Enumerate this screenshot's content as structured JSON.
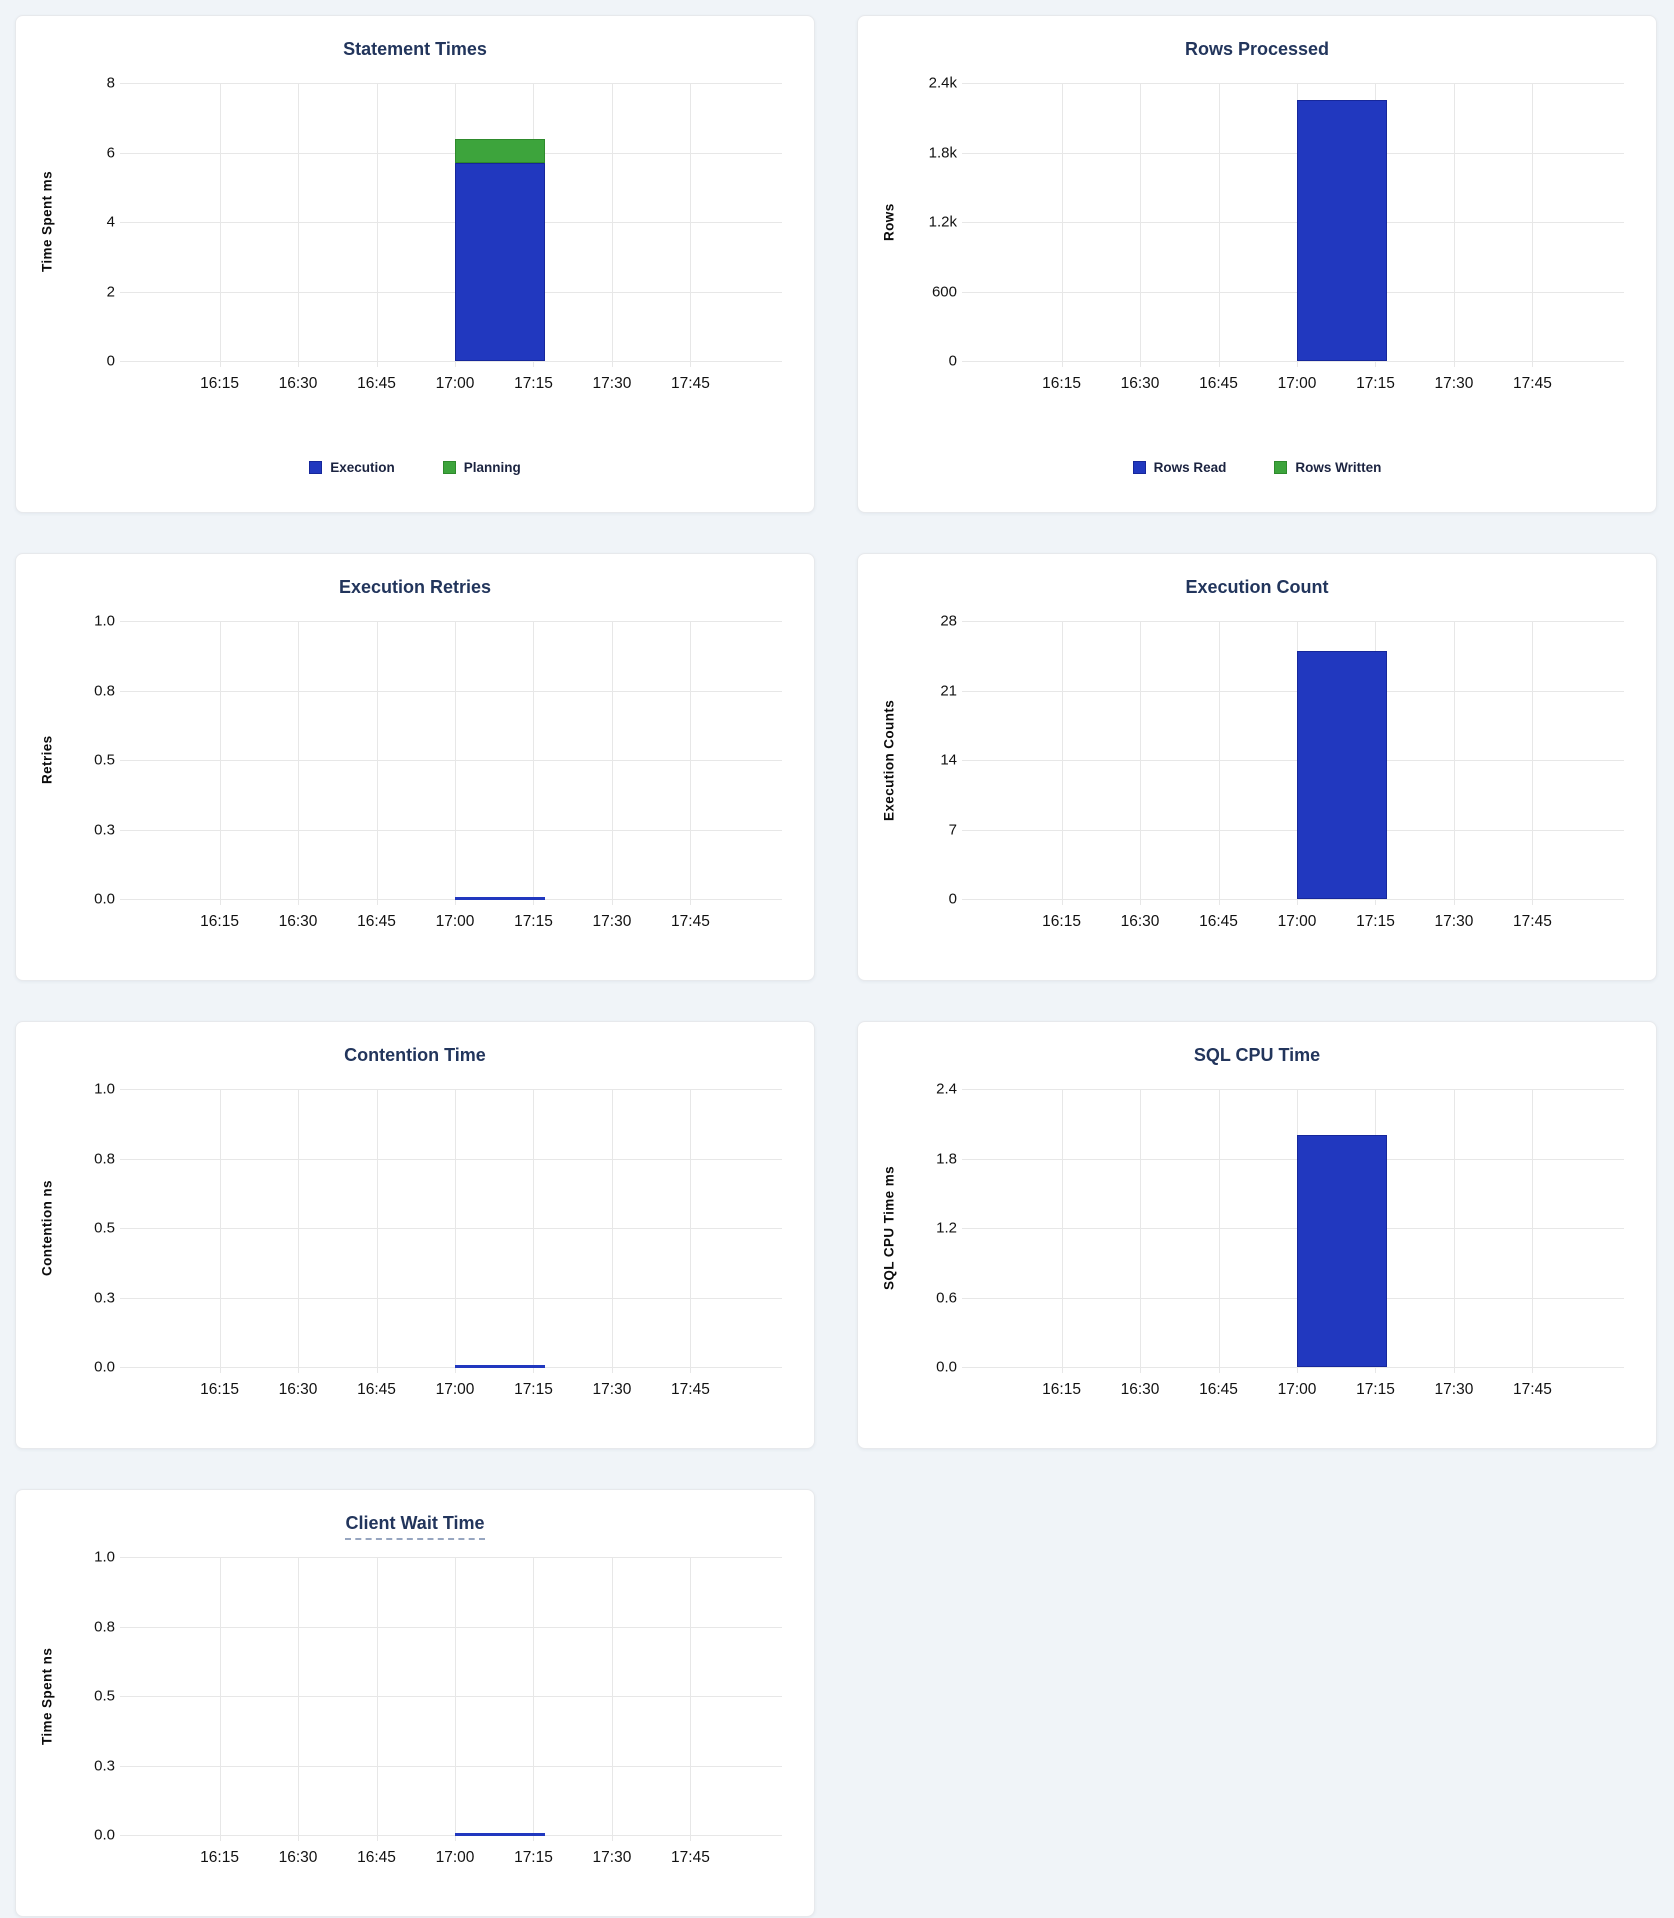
{
  "colors": {
    "blue": "#2138bf",
    "blue_border": "#16279b",
    "green": "#3da43c",
    "green_border": "#2e8a2c",
    "title_text": "#22355c",
    "grid_line": "#e7e7e7",
    "tick_text": "#121212",
    "legend_text": "#1b2340",
    "page_bg": "#f0f4f8",
    "card_bg": "#ffffff"
  },
  "x_axis": {
    "tick_labels": [
      "16:15",
      "16:30",
      "16:45",
      "17:00",
      "17:15",
      "17:30",
      "17:45"
    ],
    "range": [
      "16:00",
      "18:00"
    ]
  },
  "bar_window": {
    "x_from": "17:00",
    "x_to": "17:17",
    "from_pct": 50,
    "to_pct": 63.8
  },
  "chart_data": [
    {
      "type": "bar",
      "title": "Statement Times",
      "ylabel": "Time Spent ms",
      "xlabel": "",
      "ylim": [
        0,
        8
      ],
      "y_tick_labels": [
        "8",
        "6",
        "4",
        "2",
        "0"
      ],
      "x_tick_labels": [
        "16:15",
        "16:30",
        "16:45",
        "17:00",
        "17:15",
        "17:30",
        "17:45"
      ],
      "grid": true,
      "stacked": true,
      "series": [
        {
          "name": "Execution",
          "color": "blue",
          "x": "17:00-17:17",
          "value": 5.7
        },
        {
          "name": "Planning",
          "color": "green",
          "x": "17:00-17:17",
          "value": 0.7
        }
      ],
      "legend": [
        {
          "label": "Execution",
          "color": "blue"
        },
        {
          "label": "Planning",
          "color": "green"
        }
      ],
      "legend_position": "bottom"
    },
    {
      "type": "bar",
      "title": "Rows Processed",
      "ylabel": "Rows",
      "xlabel": "",
      "ylim": [
        0,
        2400
      ],
      "y_tick_labels": [
        "2.4k",
        "1.8k",
        "1.2k",
        "600",
        "0"
      ],
      "x_tick_labels": [
        "16:15",
        "16:30",
        "16:45",
        "17:00",
        "17:15",
        "17:30",
        "17:45"
      ],
      "grid": true,
      "stacked": true,
      "series": [
        {
          "name": "Rows Read",
          "color": "blue",
          "x": "17:00-17:17",
          "value": 2250
        },
        {
          "name": "Rows Written",
          "color": "green",
          "x": "17:00-17:17",
          "value": 0
        }
      ],
      "legend": [
        {
          "label": "Rows Read",
          "color": "blue"
        },
        {
          "label": "Rows Written",
          "color": "green"
        }
      ],
      "legend_position": "bottom"
    },
    {
      "type": "line",
      "title": "Execution Retries",
      "ylabel": "Retries",
      "xlabel": "",
      "ylim": [
        0,
        1
      ],
      "y_tick_labels": [
        "1.0",
        "0.8",
        "0.5",
        "0.3",
        "0.0"
      ],
      "x_tick_labels": [
        "16:15",
        "16:30",
        "16:45",
        "17:00",
        "17:15",
        "17:30",
        "17:45"
      ],
      "grid": true,
      "series": [
        {
          "name": "Retries",
          "color": "blue",
          "x": "17:00-17:17",
          "value": 0
        }
      ],
      "legend": null
    },
    {
      "type": "bar",
      "title": "Execution Count",
      "ylabel": "Execution Counts",
      "xlabel": "",
      "ylim": [
        0,
        28
      ],
      "y_tick_labels": [
        "28",
        "21",
        "14",
        "7",
        "0"
      ],
      "x_tick_labels": [
        "16:15",
        "16:30",
        "16:45",
        "17:00",
        "17:15",
        "17:30",
        "17:45"
      ],
      "grid": true,
      "stacked": false,
      "series": [
        {
          "name": "Execution Count",
          "color": "blue",
          "x": "17:00-17:17",
          "value": 25
        }
      ],
      "legend": null
    },
    {
      "type": "line",
      "title": "Contention Time",
      "ylabel": "Contention ns",
      "xlabel": "",
      "ylim": [
        0,
        1
      ],
      "y_tick_labels": [
        "1.0",
        "0.8",
        "0.5",
        "0.3",
        "0.0"
      ],
      "x_tick_labels": [
        "16:15",
        "16:30",
        "16:45",
        "17:00",
        "17:15",
        "17:30",
        "17:45"
      ],
      "grid": true,
      "series": [
        {
          "name": "Contention",
          "color": "blue",
          "x": "17:00-17:17",
          "value": 0
        }
      ],
      "legend": null
    },
    {
      "type": "bar",
      "title": "SQL CPU Time",
      "ylabel": "SQL CPU Time ms",
      "xlabel": "",
      "ylim": [
        0,
        2.4
      ],
      "y_tick_labels": [
        "2.4",
        "1.8",
        "1.2",
        "0.6",
        "0.0"
      ],
      "x_tick_labels": [
        "16:15",
        "16:30",
        "16:45",
        "17:00",
        "17:15",
        "17:30",
        "17:45"
      ],
      "grid": true,
      "stacked": false,
      "series": [
        {
          "name": "SQL CPU Time",
          "color": "blue",
          "x": "17:00-17:17",
          "value": 2.0
        }
      ],
      "legend": null
    },
    {
      "type": "line",
      "title": "Client Wait Time",
      "has_tooltip_underline": true,
      "ylabel": "Time Spent ns",
      "xlabel": "",
      "ylim": [
        0,
        1
      ],
      "y_tick_labels": [
        "1.0",
        "0.8",
        "0.5",
        "0.3",
        "0.0"
      ],
      "x_tick_labels": [
        "16:15",
        "16:30",
        "16:45",
        "17:00",
        "17:15",
        "17:30",
        "17:45"
      ],
      "grid": true,
      "series": [
        {
          "name": "Client Wait",
          "color": "blue",
          "x": "17:00-17:17",
          "value": 0
        }
      ],
      "legend": null
    }
  ]
}
